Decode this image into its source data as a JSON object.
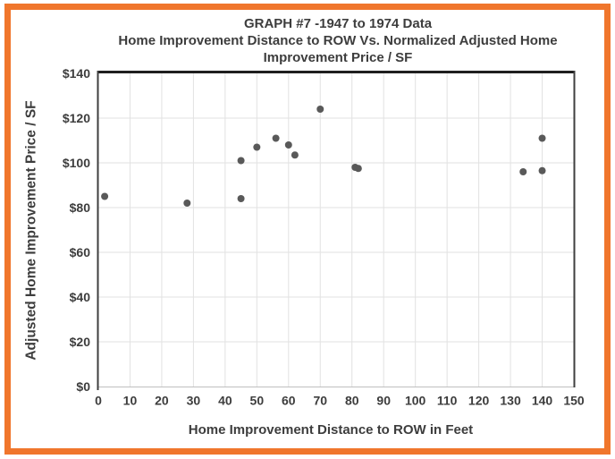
{
  "title_lines": [
    "GRAPH #7 -1947 to 1974 Data",
    "Home Improvement Distance to ROW Vs. Normalized Adjusted Home",
    "Improvement Price / SF"
  ],
  "border_color": "#f0762c",
  "chart_data": {
    "type": "scatter",
    "title": "GRAPH #7 -1947 to 1974 Data Home Improvement Distance to ROW Vs. Normalized Adjusted Home Improvement Price / SF",
    "xlabel": "Home Improvement Distance to ROW in Feet",
    "ylabel": "Adjusted Home Improvement Price / SF",
    "xlim": [
      0,
      150
    ],
    "ylim": [
      0,
      140
    ],
    "xtick_step": 10,
    "ytick_step": 20,
    "ytick_prefix": "$",
    "grid": true,
    "grid_color": "#e2e2e2",
    "point_color": "#595959",
    "points": [
      {
        "x": 2,
        "y": 85
      },
      {
        "x": 28,
        "y": 82
      },
      {
        "x": 45,
        "y": 84
      },
      {
        "x": 45,
        "y": 101
      },
      {
        "x": 50,
        "y": 107
      },
      {
        "x": 56,
        "y": 111
      },
      {
        "x": 60,
        "y": 108
      },
      {
        "x": 62,
        "y": 103.5
      },
      {
        "x": 70,
        "y": 124
      },
      {
        "x": 81,
        "y": 98
      },
      {
        "x": 82,
        "y": 97.5
      },
      {
        "x": 134,
        "y": 96
      },
      {
        "x": 140,
        "y": 111
      },
      {
        "x": 140,
        "y": 96.5
      }
    ]
  }
}
